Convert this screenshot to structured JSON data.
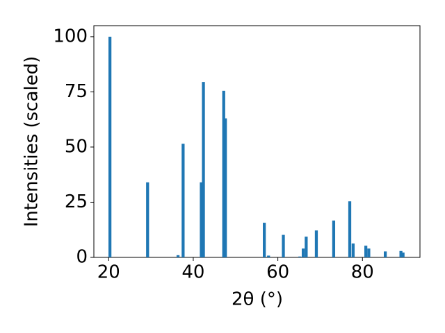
{
  "chart_data": {
    "type": "bar",
    "xlabel": "2θ (°)",
    "ylabel": "Intensities (scaled)",
    "x": [
      20.3,
      29.2,
      36.4,
      37.6,
      41.9,
      42.4,
      47.2,
      47.6,
      56.8,
      57.8,
      61.3,
      65.2,
      66.0,
      66.7,
      69.1,
      73.2,
      77.0,
      77.8,
      80.8,
      81.5,
      85.4,
      89.1,
      89.6
    ],
    "values": [
      100,
      34,
      1,
      51.5,
      34,
      79.5,
      75.5,
      63,
      15.7,
      0.8,
      10.2,
      0.4,
      4,
      9.4,
      12.2,
      16.7,
      25.4,
      6.3,
      5.3,
      4,
      2.7,
      2.9,
      2.2
    ],
    "color": "#1f77b4",
    "xlim": [
      16.5,
      93.6
    ],
    "ylim": [
      0,
      105
    ],
    "xticks": [
      20,
      40,
      60,
      80
    ],
    "yticks": [
      0,
      25,
      50,
      75,
      100
    ],
    "grid": false
  }
}
